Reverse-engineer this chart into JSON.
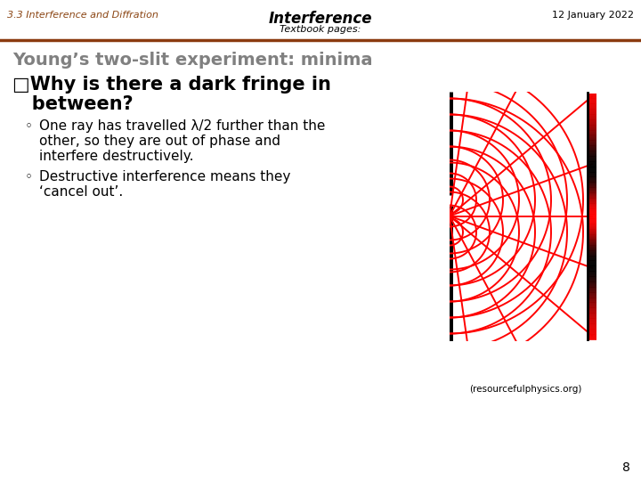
{
  "bg_color": "#ffffff",
  "header_left": "3.3 Interference and Diffration",
  "header_center": "Interference",
  "header_right": "12 January 2022",
  "subheader": "Textbook pages:",
  "header_line_color": "#8B3A0F",
  "section_title": "Young’s two-slit experiment: minima",
  "bullet_title_line1": "□Why is there a dark fringe in",
  "bullet_title_line2": "   between?",
  "bullet1_line1": "One ray has travelled λ/2 further than the",
  "bullet1_line2": "other, so they are out of phase and",
  "bullet1_line3": "interfere destructively.",
  "bullet2_line1": "Destructive interference means they",
  "bullet2_line2": "‘cancel out’.",
  "caption": "(resourcefulphysics.org)",
  "page_number": "8",
  "text_color": "#000000",
  "gray_color": "#808080",
  "header_left_color": "#8B4513",
  "diagram_color": "#ff0000",
  "bg_color_diagram": "#ffffff",
  "header_text_color": "#404040"
}
